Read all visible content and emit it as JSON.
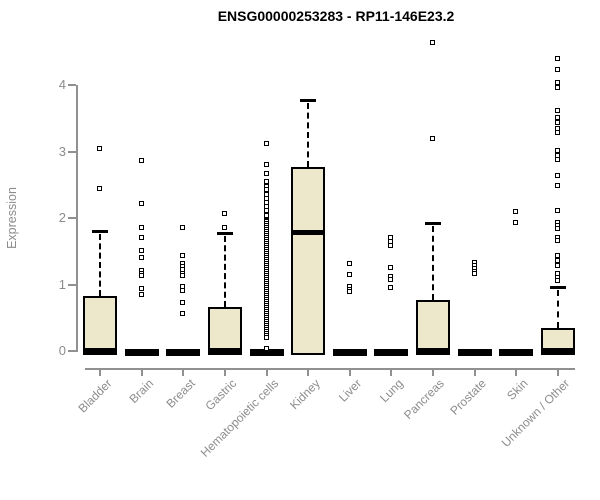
{
  "title": "ENSG00000253283 - RP11-146E23.2",
  "y_axis": {
    "label": "Expression",
    "tick_labels": [
      "0",
      "1",
      "2",
      "3",
      "4"
    ]
  },
  "style": {
    "box_fill": "#EDE8CB",
    "box_border": "#000000",
    "median_color": "#000000",
    "axis_color": "#909090",
    "tick_text_color": "#8c8c8c",
    "title_color": "#000000",
    "background": "#ffffff"
  },
  "chart_data": {
    "type": "boxplot",
    "title": "ENSG00000253283 - RP11-146E23.2",
    "xlabel": "",
    "ylabel": "Expression",
    "ylim": [
      0,
      4.7
    ],
    "yticks": [
      0,
      1,
      2,
      3,
      4
    ],
    "grid": false,
    "categories": [
      "Bladder",
      "Brain",
      "Breast",
      "Gastric",
      "Hematopoietic cells",
      "Kidney",
      "Liver",
      "Lung",
      "Pancreas",
      "Prostate",
      "Skin",
      "Unknown / Other"
    ],
    "series": [
      {
        "name": "Bladder",
        "shape": "box",
        "q1": 0,
        "median": 0.02,
        "q3": 0.83,
        "whisker_low": 0,
        "whisker_high": 1.8,
        "outliers": [
          3.05,
          2.45
        ]
      },
      {
        "name": "Brain",
        "shape": "flat",
        "q1": 0,
        "median": 0,
        "q3": 0,
        "whisker_low": 0,
        "whisker_high": 0,
        "outliers": [
          2.87,
          2.23,
          1.86,
          1.71,
          1.52,
          1.41,
          1.22,
          1.17,
          1.14,
          0.95,
          0.86
        ]
      },
      {
        "name": "Breast",
        "shape": "flat",
        "q1": 0,
        "median": 0,
        "q3": 0,
        "whisker_low": 0,
        "whisker_high": 0,
        "outliers": [
          1.86,
          1.45,
          1.33,
          1.28,
          1.24,
          1.18,
          1.14,
          0.98,
          0.92,
          0.74,
          0.57
        ]
      },
      {
        "name": "Gastric",
        "shape": "box",
        "q1": 0,
        "median": 0.02,
        "q3": 0.66,
        "whisker_low": 0,
        "whisker_high": 1.78,
        "outliers": [
          2.08,
          1.87
        ]
      },
      {
        "name": "Hematopoietic cells",
        "shape": "flat",
        "q1": 0,
        "median": 0,
        "q3": 0,
        "whisker_low": 0,
        "whisker_high": 0,
        "outliers": [
          3.13,
          2.81,
          2.68,
          2.56,
          2.48,
          2.44,
          2.36,
          2.3,
          2.24,
          2.18,
          2.12,
          2.05,
          1.97,
          1.95,
          1.92,
          1.89,
          1.86,
          1.83,
          1.8,
          1.77,
          1.74,
          1.71,
          1.68,
          1.65,
          1.62,
          1.59,
          1.56,
          1.53,
          1.5,
          1.47,
          1.44,
          1.41,
          1.38,
          1.35,
          1.32,
          1.29,
          1.26,
          1.23,
          1.2,
          1.17,
          1.14,
          1.11,
          1.08,
          1.05,
          1.02,
          0.99,
          0.96,
          0.93,
          0.9,
          0.87,
          0.84,
          0.81,
          0.78,
          0.75,
          0.72,
          0.69,
          0.66,
          0.63,
          0.6,
          0.57,
          0.54,
          0.51,
          0.48,
          0.45,
          0.42,
          0.39,
          0.36,
          0.33,
          0.3,
          0.27,
          0.24,
          0.21,
          0.05
        ]
      },
      {
        "name": "Kidney",
        "shape": "box",
        "q1": 0,
        "median": 1.79,
        "q3": 2.77,
        "whisker_low": 0,
        "whisker_high": 3.78,
        "outliers": []
      },
      {
        "name": "Liver",
        "shape": "flat",
        "q1": 0,
        "median": 0,
        "q3": 0,
        "whisker_low": 0,
        "whisker_high": 0,
        "outliers": [
          1.32,
          1.16,
          0.97,
          0.93,
          0.9
        ]
      },
      {
        "name": "Lung",
        "shape": "flat",
        "q1": 0,
        "median": 0,
        "q3": 0,
        "whisker_low": 0,
        "whisker_high": 0,
        "outliers": [
          1.71,
          1.65,
          1.59,
          1.26,
          1.13,
          1.09,
          0.96
        ]
      },
      {
        "name": "Pancreas",
        "shape": "box",
        "q1": 0,
        "median": 0.02,
        "q3": 0.77,
        "whisker_low": 0,
        "whisker_high": 1.92,
        "outliers": [
          4.65,
          3.2
        ]
      },
      {
        "name": "Prostate",
        "shape": "flat",
        "q1": 0,
        "median": 0,
        "q3": 0,
        "whisker_low": 0,
        "whisker_high": 0,
        "outliers": [
          1.34,
          1.29,
          1.25,
          1.21,
          1.17
        ]
      },
      {
        "name": "Skin",
        "shape": "flat",
        "q1": 0,
        "median": 0,
        "q3": 0,
        "whisker_low": 0,
        "whisker_high": 0,
        "outliers": [
          2.11,
          1.94
        ]
      },
      {
        "name": "Unknown / Other",
        "shape": "box",
        "q1": 0,
        "median": 0.02,
        "q3": 0.35,
        "whisker_low": 0,
        "whisker_high": 0.96,
        "outliers": [
          4.4,
          4.24,
          4.05,
          3.97,
          3.62,
          3.52,
          3.44,
          3.36,
          3.3,
          3.02,
          2.95,
          2.88,
          2.65,
          2.5,
          2.12,
          1.94,
          1.89,
          1.85,
          1.71,
          1.67,
          1.44,
          1.37,
          1.3,
          1.17,
          1.12,
          1.07
        ]
      }
    ]
  }
}
